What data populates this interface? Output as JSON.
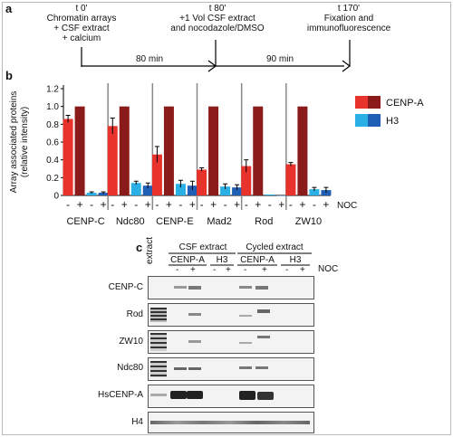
{
  "panel_a": {
    "label": "a",
    "steps": [
      {
        "time": "t 0'",
        "text": [
          "Chromatin arrays",
          "+ CSF extract",
          "+ calcium"
        ]
      },
      {
        "time": "t 80'",
        "text": [
          "+1 Vol CSF extract",
          "and nocodazole/DMSO"
        ]
      },
      {
        "time": "t 170'",
        "text": [
          "Fixation and",
          "immunofluorescence"
        ]
      }
    ],
    "intervals": [
      "80 min",
      "90 min"
    ]
  },
  "panel_b_label": "b",
  "panel_c_label": "c",
  "chart_data": {
    "type": "bar",
    "ylabel": "Array associated proteins (relative intensity)",
    "ylim": [
      0,
      1.2
    ],
    "yticks": [
      0,
      0.2,
      0.4,
      0.6,
      0.8,
      1.0,
      1.2
    ],
    "categories": [
      "CENP-C",
      "Ndc80",
      "CENP-E",
      "Mad2",
      "Rod",
      "ZW10"
    ],
    "sub_labels": [
      "-",
      "+",
      "-",
      "+"
    ],
    "noc_label": "NOC",
    "legend": [
      "CENP-A",
      "H3"
    ],
    "colors": {
      "cenpa_minus": "#e8332c",
      "cenpa_plus": "#8b1a1a",
      "h3_minus": "#2bb0e6",
      "h3_plus": "#1f5fb5"
    },
    "series": [
      {
        "name": "CENP-A",
        "noc": "-",
        "values": [
          0.86,
          0.78,
          0.46,
          0.29,
          0.33,
          0.35
        ],
        "errors": [
          0.04,
          0.09,
          0.09,
          0.02,
          0.07,
          0.02
        ]
      },
      {
        "name": "CENP-A",
        "noc": "+",
        "values": [
          1.0,
          1.0,
          1.0,
          1.0,
          1.0,
          1.0
        ],
        "errors": [
          0,
          0,
          0,
          0,
          0,
          0
        ]
      },
      {
        "name": "H3",
        "noc": "-",
        "values": [
          0.03,
          0.14,
          0.13,
          0.1,
          0.01,
          0.07
        ],
        "errors": [
          0.01,
          0.02,
          0.04,
          0.03,
          0.0,
          0.02
        ]
      },
      {
        "name": "H3",
        "noc": "+",
        "values": [
          0.03,
          0.11,
          0.11,
          0.09,
          0.0,
          0.06
        ],
        "errors": [
          0.01,
          0.03,
          0.05,
          0.03,
          0.0,
          0.03
        ]
      }
    ]
  },
  "panel_c": {
    "extract_label": "extract",
    "groups": [
      "CSF extract",
      "Cycled extract"
    ],
    "subgroups": [
      "CENP-A",
      "H3",
      "CENP-A",
      "H3"
    ],
    "lane_signs": [
      "-",
      "+",
      "-",
      "+",
      "-",
      "+",
      "-",
      "+"
    ],
    "noc_label": "NOC",
    "rows": [
      "CENP-C",
      "Rod",
      "ZW10",
      "Ndc80",
      "HsCENP-A",
      "H4"
    ]
  }
}
